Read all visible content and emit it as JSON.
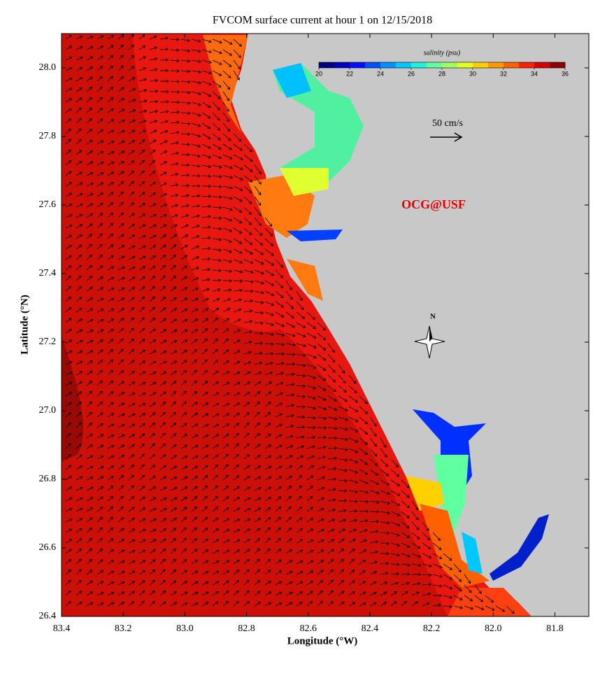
{
  "chart_data": {
    "type": "map",
    "title": "FVCOM surface current at hour 1 on 12/15/2018",
    "xlabel": "Longitude (°W)",
    "ylabel": "Latitude (°N)",
    "xlim": [
      83.4,
      81.69
    ],
    "ylim": [
      26.4,
      28.1
    ],
    "xticks": [
      83.4,
      83.2,
      {
        "value": 83,
        "label": "83.0"
      },
      82.8,
      82.6,
      82.4,
      82.2,
      {
        "value": 82,
        "label": "82.0"
      },
      81.8
    ],
    "yticks": [
      26.4,
      26.6,
      26.8,
      {
        "value": 27,
        "label": "27.0"
      },
      27.2,
      27.4,
      27.6,
      27.8,
      {
        "value": 28,
        "label": "28.0"
      }
    ],
    "colorbar": {
      "title": "salinity (psu)",
      "ticks": [
        20,
        22,
        24,
        26,
        28,
        30,
        32,
        34,
        36
      ],
      "colors": [
        "#00007f",
        "#0000bf",
        "#0010ff",
        "#0050ff",
        "#0090ff",
        "#00c8ff",
        "#20f0e0",
        "#60ffa0",
        "#a0ff60",
        "#e0ff20",
        "#ffd000",
        "#ff9800",
        "#ff6000",
        "#ff2000",
        "#d80000",
        "#8c0000"
      ]
    },
    "scale_label": "50 cm/s",
    "watermark": "OCG@USF",
    "compass_label": "N"
  }
}
